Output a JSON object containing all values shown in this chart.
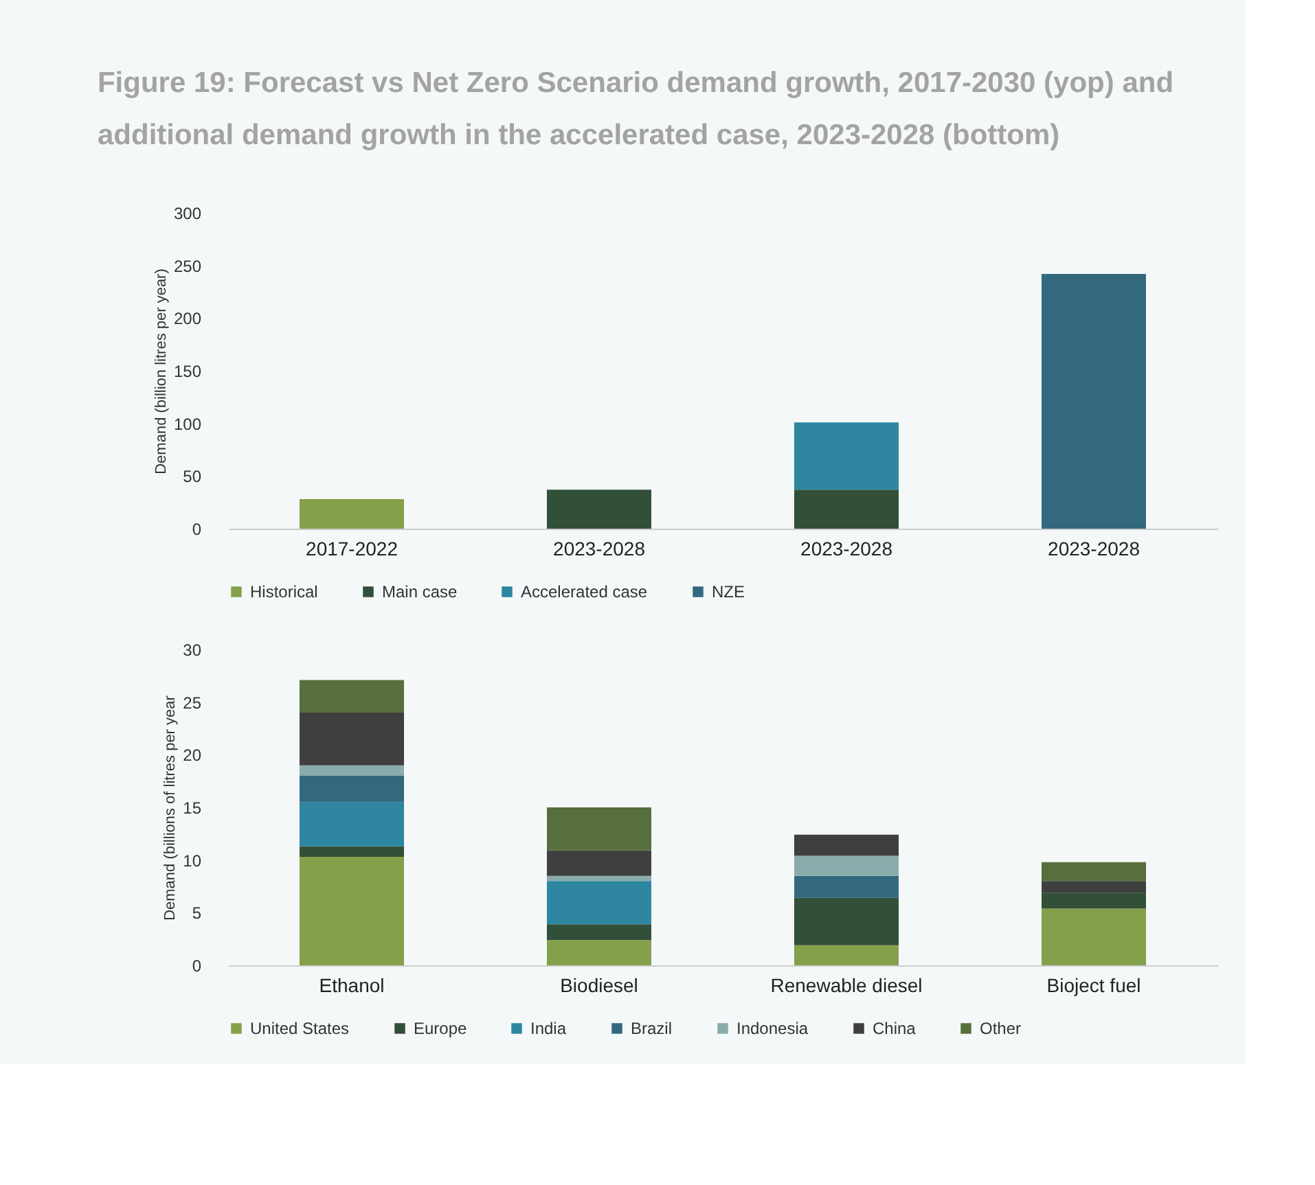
{
  "chart_data": [
    {
      "type": "bar",
      "title": "Figure 19: Forecast vs Net Zero Scenario demand growth, 2017-2030 (yop) and additional demand growth in the accelerated case, 2023-2028 (bottom)",
      "ylabel": "Demand (billion litres per year)",
      "categories": [
        "2017-2022",
        "2023-2028",
        "2023-2028",
        "2023-2028"
      ],
      "stacked": true,
      "ylim": [
        0,
        300
      ],
      "yticks": [
        0,
        50,
        100,
        150,
        200,
        250,
        300
      ],
      "grid": false,
      "legend": "bottom",
      "series": [
        {
          "name": "Historical",
          "color": "#84a04a",
          "values": [
            28,
            null,
            null,
            null
          ]
        },
        {
          "name": "Main case",
          "color": "#324f37",
          "values": [
            null,
            37,
            37,
            null
          ]
        },
        {
          "name": "Accelerated case",
          "color": "#2e86a0",
          "values": [
            null,
            null,
            64,
            null
          ]
        },
        {
          "name": "NZE",
          "color": "#33697e",
          "values": [
            null,
            null,
            null,
            242
          ]
        }
      ]
    },
    {
      "type": "bar",
      "ylabel": "Demand (billions of litres per year",
      "categories": [
        "Ethanol",
        "Biodiesel",
        "Renewable diesel",
        "Bioject fuel"
      ],
      "stacked": true,
      "ylim": [
        0,
        30
      ],
      "yticks": [
        0,
        5,
        10,
        15,
        20,
        25,
        30
      ],
      "grid": false,
      "legend": "bottom",
      "series": [
        {
          "name": "United States",
          "color": "#84a04a",
          "values": [
            10.3,
            2.4,
            1.9,
            5.4
          ]
        },
        {
          "name": "Europe",
          "color": "#324f37",
          "values": [
            1.0,
            1.5,
            4.5,
            1.5
          ]
        },
        {
          "name": "India",
          "color": "#2e86a0",
          "values": [
            4.2,
            4.1,
            null,
            null
          ]
        },
        {
          "name": "Brazil",
          "color": "#33697e",
          "values": [
            2.5,
            null,
            2.1,
            null
          ]
        },
        {
          "name": "Indonesia",
          "color": "#8aabab",
          "values": [
            1.0,
            0.5,
            1.9,
            null
          ]
        },
        {
          "name": "China",
          "color": "#3f3f3f",
          "values": [
            5.0,
            2.4,
            2.0,
            1.1
          ]
        },
        {
          "name": "Other",
          "color": "#566f3c",
          "values": [
            3.1,
            4.1,
            null,
            1.8
          ]
        }
      ]
    }
  ]
}
